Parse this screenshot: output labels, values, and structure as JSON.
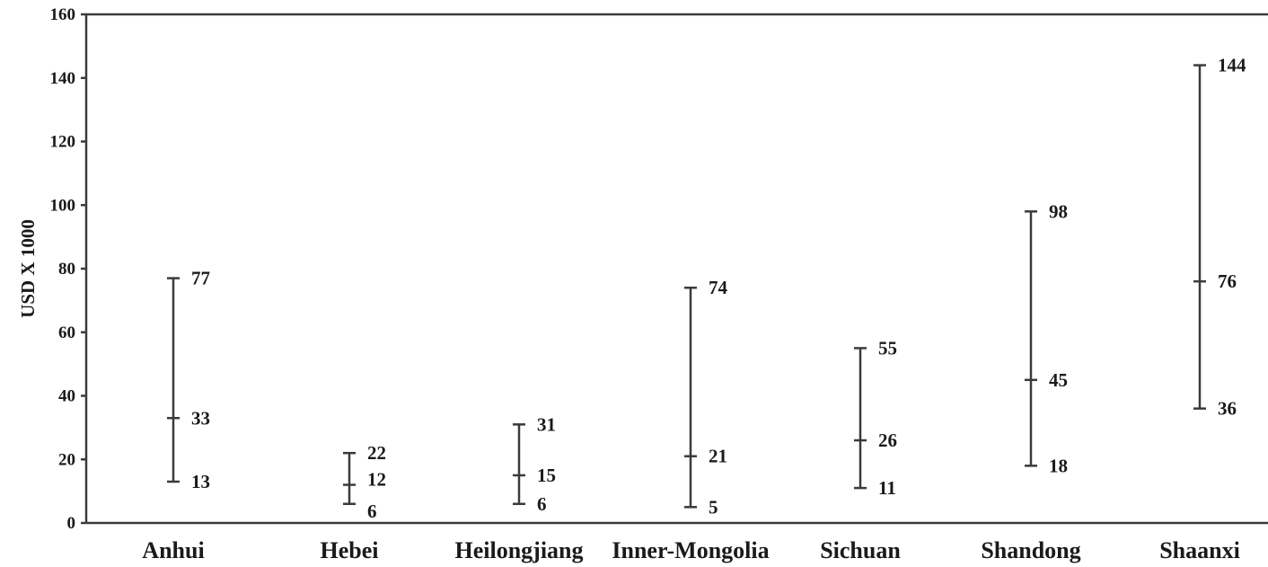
{
  "chart_data": {
    "type": "range",
    "title": "",
    "xlabel": "",
    "ylabel": "USD X 1000",
    "ylim": [
      0,
      160
    ],
    "yticks": [
      0,
      20,
      40,
      60,
      80,
      100,
      120,
      140,
      160
    ],
    "grid": false,
    "legend": "none",
    "categories": [
      "Anhui",
      "Hebei",
      "Heilongjiang",
      "Inner-Mongolia",
      "Sichuan",
      "Shandong",
      "Shaanxi"
    ],
    "series": [
      {
        "values": [
          13,
          6,
          6,
          5,
          11,
          18,
          36
        ]
      },
      {
        "values": [
          33,
          12,
          15,
          21,
          26,
          45,
          76
        ]
      },
      {
        "values": [
          77,
          22,
          31,
          74,
          55,
          98,
          144
        ]
      }
    ],
    "line_color": "#3a3a3a",
    "text_color": "#1a1a1a"
  }
}
